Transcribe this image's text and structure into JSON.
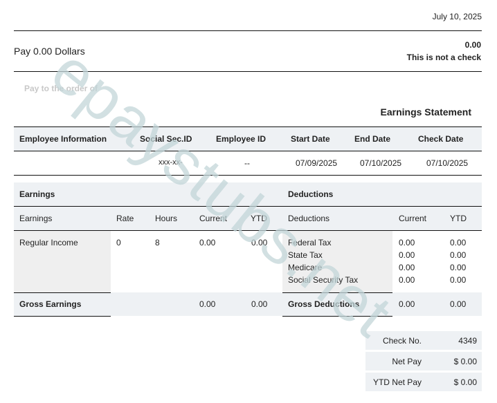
{
  "date": "July 10, 2025",
  "pay_amount_words": "Pay 0.00 Dollars",
  "amount": "0.00",
  "not_check": "This is not a check",
  "pay_to_order": "Pay to the order of",
  "statement_title": "Earnings Statement",
  "watermark": "epaystubs.net",
  "employee_table": {
    "headers": [
      "Employee Information",
      "Social Sec.ID",
      "Employee ID",
      "Start Date",
      "End Date",
      "Check Date"
    ],
    "row": [
      "",
      "xxx-xx-",
      "--",
      "07/09/2025",
      "07/10/2025",
      "07/10/2025"
    ]
  },
  "earnings": {
    "title": "Earnings",
    "headers": [
      "Earnings",
      "Rate",
      "Hours",
      "Current",
      "YTD"
    ],
    "rows": [
      {
        "name": "Regular Income",
        "rate": "0",
        "hours": "8",
        "current": "0.00",
        "ytd": "0.00"
      }
    ],
    "gross_label": "Gross Earnings",
    "gross_current": "0.00",
    "gross_ytd": "0.00"
  },
  "deductions": {
    "title": "Deductions",
    "headers": [
      "Deductions",
      "Current",
      "YTD"
    ],
    "rows": [
      {
        "name": "Federal Tax",
        "current": "0.00",
        "ytd": "0.00"
      },
      {
        "name": "State Tax",
        "current": "0.00",
        "ytd": "0.00"
      },
      {
        "name": "Medicare",
        "current": "0.00",
        "ytd": "0.00"
      },
      {
        "name": "Social Security Tax",
        "current": "0.00",
        "ytd": "0.00"
      }
    ],
    "gross_label": "Gross Deductions",
    "gross_current": "0.00",
    "gross_ytd": "0.00"
  },
  "summary": [
    {
      "label": "Check No.",
      "value": "4349"
    },
    {
      "label": "Net Pay",
      "value": "$ 0.00"
    },
    {
      "label": "YTD Net Pay",
      "value": "$ 0.00"
    }
  ]
}
